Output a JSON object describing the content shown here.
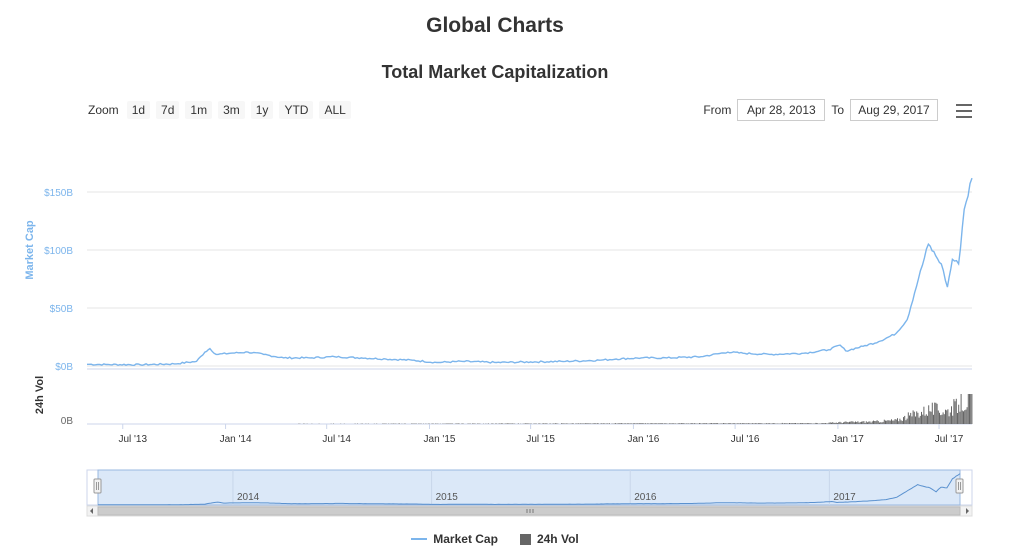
{
  "page": {
    "title": "Global Charts"
  },
  "toolbar": {
    "zoom_label": "Zoom",
    "zoom_buttons": [
      "1d",
      "7d",
      "1m",
      "3m",
      "1y",
      "YTD",
      "ALL"
    ],
    "from_label": "From",
    "from_value": "Apr 28, 2013",
    "to_label": "To",
    "to_value": "Aug 29, 2017",
    "menu_icon": "hamburger-menu-icon"
  },
  "chart_data": {
    "type": "line",
    "title": "Total Market Capitalization",
    "ylabel": "Market Cap",
    "ylabel2": "24h Vol",
    "ylim": [
      0,
      160
    ],
    "yticks": [
      "$0B",
      "$50B",
      "$100B",
      "$150B"
    ],
    "vol_tick": "0B",
    "xticks": [
      "Jul '13",
      "Jan '14",
      "Jul '14",
      "Jan '15",
      "Jul '15",
      "Jan '16",
      "Jul '16",
      "Jan '17",
      "Jul '17"
    ],
    "navigator_labels": [
      "2014",
      "2015",
      "2016",
      "2017"
    ],
    "colors": {
      "market_cap": "#7cb5ec",
      "volume": "#666666",
      "navigator_fill": "#dbe8f8"
    },
    "series": [
      {
        "name": "Market Cap",
        "x": [
          "2013-04-28",
          "2013-06-01",
          "2013-08-01",
          "2013-10-01",
          "2013-11-10",
          "2013-11-25",
          "2013-12-04",
          "2013-12-15",
          "2014-01-10",
          "2014-02-10",
          "2014-03-10",
          "2014-04-15",
          "2014-06-01",
          "2014-07-15",
          "2014-09-01",
          "2014-10-15",
          "2014-12-01",
          "2015-01-14",
          "2015-03-01",
          "2015-05-01",
          "2015-07-01",
          "2015-09-01",
          "2015-11-01",
          "2015-12-01",
          "2016-01-15",
          "2016-03-01",
          "2016-05-01",
          "2016-06-18",
          "2016-07-15",
          "2016-09-01",
          "2016-11-01",
          "2016-12-15",
          "2017-01-05",
          "2017-01-15",
          "2017-02-15",
          "2017-03-15",
          "2017-04-15",
          "2017-05-05",
          "2017-05-25",
          "2017-06-12",
          "2017-06-25",
          "2017-07-05",
          "2017-07-16",
          "2017-07-25",
          "2017-08-05",
          "2017-08-15",
          "2017-08-29"
        ],
        "values": [
          1.5,
          1.3,
          1.1,
          1.8,
          4,
          12,
          15,
          10,
          11,
          12,
          10,
          7,
          7,
          8,
          7,
          6,
          5,
          3,
          4,
          3,
          3.5,
          4,
          5,
          6,
          7,
          7,
          8,
          12,
          11,
          10,
          11,
          14,
          18,
          13,
          17,
          21,
          28,
          40,
          75,
          105,
          95,
          88,
          68,
          92,
          88,
          135,
          162
        ]
      },
      {
        "name": "24h Vol",
        "x": [
          "2013-04-28",
          "2016-12-01",
          "2017-01-15",
          "2017-03-01",
          "2017-04-15",
          "2017-05-15",
          "2017-06-15",
          "2017-07-15",
          "2017-08-15",
          "2017-08-29"
        ],
        "values": [
          0,
          0.2,
          0.5,
          0.6,
          1,
          2.5,
          4,
          3.5,
          6,
          7
        ],
        "vmax": 8
      }
    ]
  },
  "legend": {
    "items": [
      "Market Cap",
      "24h Vol"
    ]
  }
}
